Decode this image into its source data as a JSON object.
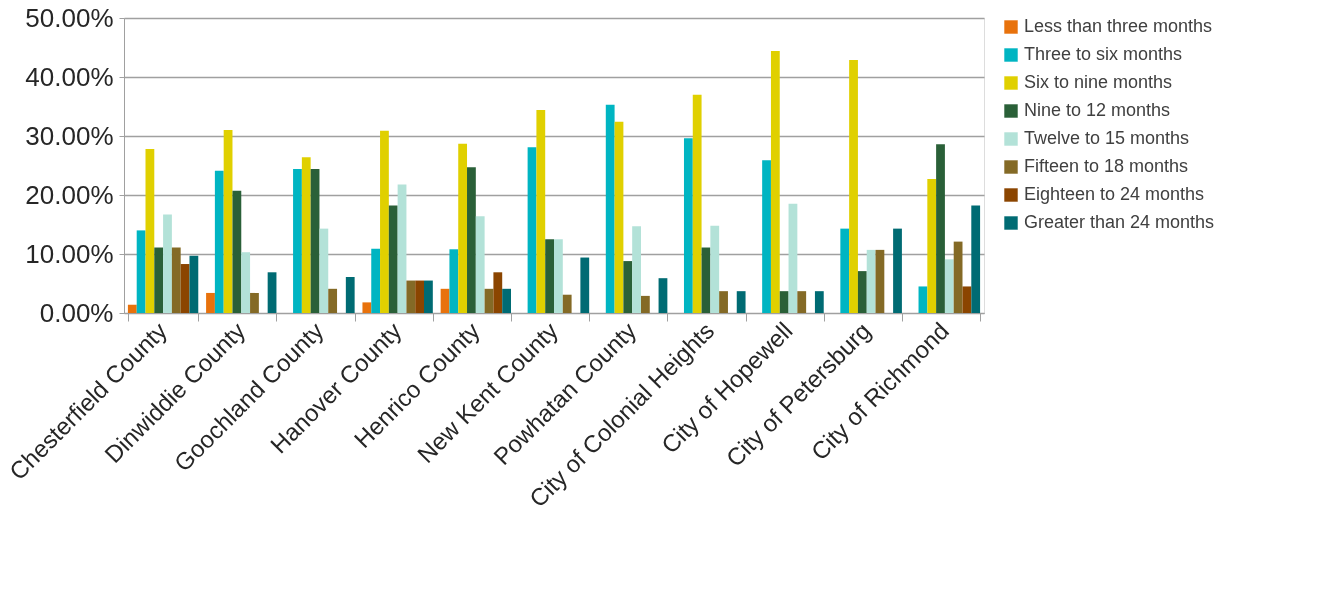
{
  "chart_data": {
    "type": "bar",
    "categories": [
      "Chesterfield County",
      "Dinwiddie County",
      "Goochland County",
      "Hanover County",
      "Henrico County",
      "New Kent County",
      "Powhatan County",
      "City of Colonial Heights",
      "City of Hopewell",
      "City of Petersburg",
      "City of Richmond"
    ],
    "series": [
      {
        "name": "Less than three months",
        "color": "#e8720c",
        "values": [
          1.4,
          3.4,
          null,
          1.8,
          4.1,
          null,
          null,
          null,
          null,
          null,
          null
        ]
      },
      {
        "name": "Three to six months",
        "color": "#00b5c2",
        "values": [
          14.0,
          24.1,
          24.4,
          10.9,
          10.8,
          28.1,
          35.3,
          29.6,
          25.9,
          14.3,
          4.5
        ]
      },
      {
        "name": "Six to nine months",
        "color": "#e0d000",
        "values": [
          27.8,
          31.0,
          26.4,
          30.9,
          28.7,
          34.4,
          32.4,
          37.0,
          44.4,
          42.9,
          22.7
        ]
      },
      {
        "name": "Nine to 12 months",
        "color": "#2a6038",
        "values": [
          11.1,
          20.7,
          24.4,
          18.2,
          24.7,
          12.5,
          8.8,
          11.1,
          3.7,
          7.1,
          28.6
        ]
      },
      {
        "name": "Twelve to 15 months",
        "color": "#b3e2d8",
        "values": [
          16.7,
          10.3,
          14.3,
          21.8,
          16.4,
          12.5,
          14.7,
          14.8,
          18.5,
          10.7,
          9.1
        ]
      },
      {
        "name": "Fifteen to 18 months",
        "color": "#846a26",
        "values": [
          11.1,
          3.4,
          4.1,
          5.5,
          4.1,
          3.1,
          2.9,
          3.7,
          3.7,
          10.7,
          12.1
        ]
      },
      {
        "name": "Eighteen to 24  months",
        "color": "#8b4500",
        "values": [
          8.3,
          null,
          null,
          5.5,
          6.9,
          null,
          null,
          null,
          null,
          null,
          4.5
        ]
      },
      {
        "name": "Greater than 24 months",
        "color": "#006b73",
        "values": [
          9.7,
          6.9,
          6.1,
          5.5,
          4.1,
          9.4,
          5.9,
          3.7,
          3.7,
          14.3,
          18.2
        ]
      }
    ],
    "ylim": [
      0,
      50
    ],
    "yticks": [
      {
        "value": 0,
        "label": "0.00%"
      },
      {
        "value": 10,
        "label": "10.00%"
      },
      {
        "value": 20,
        "label": "20.00%"
      },
      {
        "value": 30,
        "label": "30.00%"
      },
      {
        "value": 40,
        "label": "40.00%"
      },
      {
        "value": 50,
        "label": "50.00%"
      }
    ],
    "grid": "y",
    "legend": "right"
  }
}
